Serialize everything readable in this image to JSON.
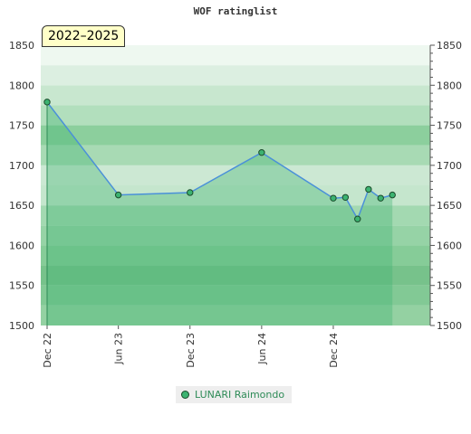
{
  "chart_data": {
    "type": "area",
    "title": "WOF ratinglist",
    "badge": "2022–2025",
    "ylim": [
      1500,
      1850
    ],
    "yticks": [
      1500,
      1550,
      1600,
      1650,
      1700,
      1750,
      1800,
      1850
    ],
    "xlim": [
      "2022-12-01",
      "2025-08-01"
    ],
    "xticks": [
      {
        "date": "2022-12-01",
        "label": "Dec 22"
      },
      {
        "date": "2023-06-01",
        "label": "Jun 23"
      },
      {
        "date": "2023-12-01",
        "label": "Dec 23"
      },
      {
        "date": "2024-06-01",
        "label": "Jun 24"
      },
      {
        "date": "2024-12-01",
        "label": "Dec 24"
      }
    ],
    "series": [
      {
        "name": "LUNARI Raimondo",
        "color": "#3cb371",
        "line_color": "#4a90d9",
        "points": [
          {
            "x": "2022-12-01",
            "y": 1779
          },
          {
            "x": "2023-06-01",
            "y": 1663
          },
          {
            "x": "2023-12-01",
            "y": 1666
          },
          {
            "x": "2024-06-01",
            "y": 1716
          },
          {
            "x": "2024-12-01",
            "y": 1659
          },
          {
            "x": "2025-01-01",
            "y": 1660
          },
          {
            "x": "2025-02-01",
            "y": 1633
          },
          {
            "x": "2025-03-01",
            "y": 1670
          },
          {
            "x": "2025-04-01",
            "y": 1659
          },
          {
            "x": "2025-05-01",
            "y": 1663
          }
        ]
      }
    ],
    "grid": true,
    "legend_position": "bottom-center"
  }
}
